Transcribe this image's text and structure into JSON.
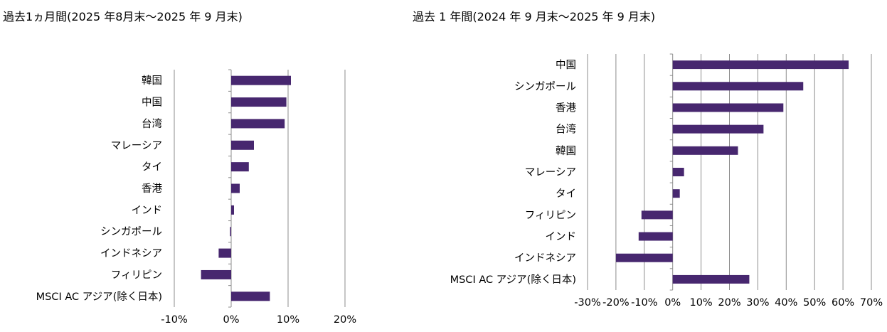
{
  "chart_data": [
    {
      "type": "bar",
      "orientation": "horizontal",
      "title": "過去1ヵ月間(2025 年8月末～2025 年 9 月末)",
      "categories": [
        "韓国",
        "中国",
        "台湾",
        "マレーシア",
        "タイ",
        "香港",
        "インド",
        "シンガポール",
        "インドネシア",
        "フィリピン",
        "MSCI AC アジア(除く日本)"
      ],
      "values": [
        10.5,
        9.7,
        9.4,
        4.0,
        3.1,
        1.5,
        0.5,
        -0.2,
        -2.2,
        -5.3,
        6.8
      ],
      "xlim": [
        -10,
        20
      ],
      "xticks": [
        "-10%",
        "0%",
        "10%",
        "20%"
      ],
      "grid": true,
      "bar_color": "#47276f"
    },
    {
      "type": "bar",
      "orientation": "horizontal",
      "title": "過去 1 年間(2024 年 9 月末～2025 年 9 月末)",
      "categories": [
        "中国",
        "シンガポール",
        "香港",
        "台湾",
        "韓国",
        "マレーシア",
        "タイ",
        "フィリピン",
        "インド",
        "インドネシア",
        "MSCI AC アジア(除く日本)"
      ],
      "values": [
        62,
        46,
        39,
        32,
        23,
        4,
        2.5,
        -11,
        -12,
        -20,
        27
      ],
      "xlim": [
        -30,
        70
      ],
      "xticks": [
        "-30%",
        "-20%",
        "-10%",
        "0%",
        "10%",
        "20%",
        "30%",
        "40%",
        "50%",
        "60%",
        "70%"
      ],
      "grid": true,
      "bar_color": "#47276f"
    }
  ]
}
